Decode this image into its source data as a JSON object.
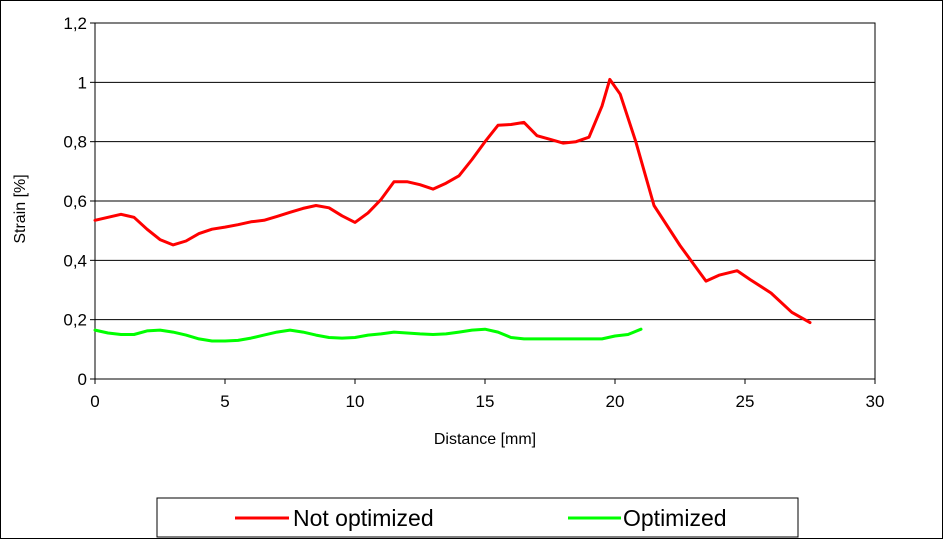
{
  "chart_data": {
    "type": "line",
    "xlabel": "Distance [mm]",
    "ylabel": "Strain  [%]",
    "xlim": [
      0,
      30
    ],
    "ylim": [
      0,
      1.2
    ],
    "x_ticks": [
      0,
      5,
      10,
      15,
      20,
      25,
      30
    ],
    "x_tick_labels": [
      "0",
      "5",
      "10",
      "15",
      "20",
      "25",
      "30"
    ],
    "y_ticks": [
      0,
      0.2,
      0.4,
      0.6,
      0.8,
      1.0,
      1.2
    ],
    "y_tick_labels": [
      "0",
      "0,2",
      "0,4",
      "0,6",
      "0,8",
      "1",
      "1,2"
    ],
    "grid": "horizontal",
    "legend_position": "bottom",
    "series": [
      {
        "name": "Not optimized",
        "color": "#ff0000",
        "x": [
          0,
          0.5,
          1,
          1.5,
          2,
          2.5,
          3,
          3.5,
          4,
          4.5,
          5,
          5.5,
          6,
          6.5,
          7,
          7.5,
          8,
          8.5,
          9,
          9.5,
          10,
          10.5,
          11,
          11.5,
          12,
          12.5,
          13,
          13.5,
          14,
          14.5,
          15,
          15.5,
          16,
          16.5,
          17,
          17.5,
          18,
          18.5,
          19,
          19.5,
          19.8,
          20.2,
          20.8,
          21.5,
          22.5,
          23.5,
          24,
          24.7,
          25.2,
          26,
          26.8,
          27.5
        ],
        "y": [
          0.535,
          0.545,
          0.555,
          0.545,
          0.505,
          0.47,
          0.452,
          0.465,
          0.49,
          0.505,
          0.512,
          0.52,
          0.53,
          0.535,
          0.548,
          0.562,
          0.575,
          0.585,
          0.577,
          0.55,
          0.528,
          0.56,
          0.605,
          0.665,
          0.665,
          0.655,
          0.64,
          0.66,
          0.685,
          0.74,
          0.8,
          0.855,
          0.858,
          0.865,
          0.82,
          0.808,
          0.795,
          0.8,
          0.815,
          0.92,
          1.01,
          0.96,
          0.8,
          0.585,
          0.45,
          0.33,
          0.35,
          0.365,
          0.335,
          0.29,
          0.225,
          0.19
        ]
      },
      {
        "name": "Optimized",
        "color": "#00ff00",
        "x": [
          0,
          0.5,
          1,
          1.5,
          2,
          2.5,
          3,
          3.5,
          4,
          4.5,
          5,
          5.5,
          6,
          6.5,
          7,
          7.5,
          8,
          8.5,
          9,
          9.5,
          10,
          10.5,
          11,
          11.5,
          12,
          12.5,
          13,
          13.5,
          14,
          14.5,
          15,
          15.5,
          16,
          16.5,
          17,
          17.5,
          18,
          18.5,
          19,
          19.5,
          20,
          20.5,
          21
        ],
        "y": [
          0.165,
          0.155,
          0.15,
          0.15,
          0.162,
          0.165,
          0.158,
          0.148,
          0.135,
          0.128,
          0.128,
          0.13,
          0.138,
          0.148,
          0.158,
          0.165,
          0.158,
          0.148,
          0.14,
          0.138,
          0.14,
          0.148,
          0.152,
          0.158,
          0.155,
          0.152,
          0.15,
          0.152,
          0.158,
          0.165,
          0.168,
          0.158,
          0.14,
          0.135,
          0.135,
          0.135,
          0.135,
          0.135,
          0.135,
          0.135,
          0.145,
          0.15,
          0.168
        ]
      }
    ]
  }
}
